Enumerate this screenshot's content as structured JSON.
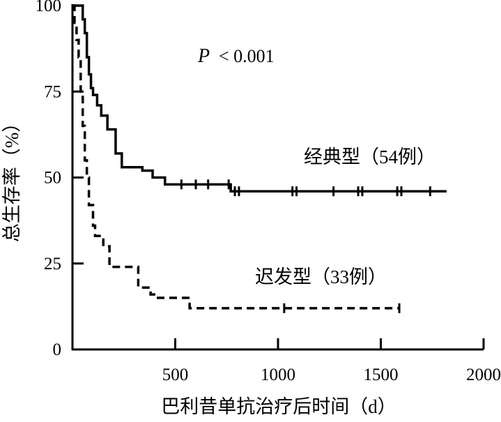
{
  "chart_data": {
    "type": "line",
    "title": "",
    "xlabel": "巴利昔单抗治疗后时间（d）",
    "ylabel": "总生存率（%）",
    "xlim": [
      0,
      2000
    ],
    "ylim": [
      0,
      100
    ],
    "x_ticks": [
      500,
      1000,
      1500,
      2000
    ],
    "x_tick_labels": [
      "500",
      "1000",
      "1500",
      "2000"
    ],
    "y_ticks": [
      0,
      25,
      50,
      75,
      100
    ],
    "y_tick_labels": [
      "0",
      "25",
      "50",
      "75",
      "100"
    ],
    "grid": false,
    "annotation": {
      "p_symbol": "P",
      "p_text": "< 0.001"
    },
    "series": [
      {
        "name": "经典型（54例）",
        "label": "经典型（54例）",
        "style": "solid",
        "color": "#000000",
        "x": [
          0,
          30,
          50,
          60,
          70,
          80,
          90,
          100,
          120,
          140,
          170,
          210,
          240,
          340,
          390,
          450,
          770,
          1820
        ],
        "y": [
          100,
          100,
          96,
          92,
          85,
          80,
          76,
          74,
          71,
          68,
          64,
          57,
          53,
          52,
          50,
          48,
          46,
          46
        ],
        "censored": [
          {
            "x": 530,
            "y": 48
          },
          {
            "x": 600,
            "y": 48
          },
          {
            "x": 660,
            "y": 48
          },
          {
            "x": 760,
            "y": 48
          },
          {
            "x": 790,
            "y": 46
          },
          {
            "x": 810,
            "y": 46
          },
          {
            "x": 1070,
            "y": 46
          },
          {
            "x": 1090,
            "y": 46
          },
          {
            "x": 1270,
            "y": 46
          },
          {
            "x": 1390,
            "y": 46
          },
          {
            "x": 1410,
            "y": 46
          },
          {
            "x": 1580,
            "y": 46
          },
          {
            "x": 1600,
            "y": 46
          },
          {
            "x": 1740,
            "y": 46
          }
        ]
      },
      {
        "name": "迟发型（33例）",
        "label": "迟发型（33例）",
        "style": "dashed",
        "color": "#000000",
        "x": [
          0,
          10,
          20,
          30,
          40,
          50,
          60,
          70,
          80,
          100,
          110,
          150,
          180,
          210,
          320,
          380,
          410,
          570,
          630,
          1590
        ],
        "y": [
          100,
          95,
          90,
          85,
          75,
          65,
          55,
          50,
          42,
          36,
          33,
          30,
          24,
          24,
          18,
          16,
          15,
          12,
          12,
          12
        ],
        "censored": [
          {
            "x": 1030,
            "y": 12
          },
          {
            "x": 1590,
            "y": 12
          }
        ]
      }
    ]
  }
}
